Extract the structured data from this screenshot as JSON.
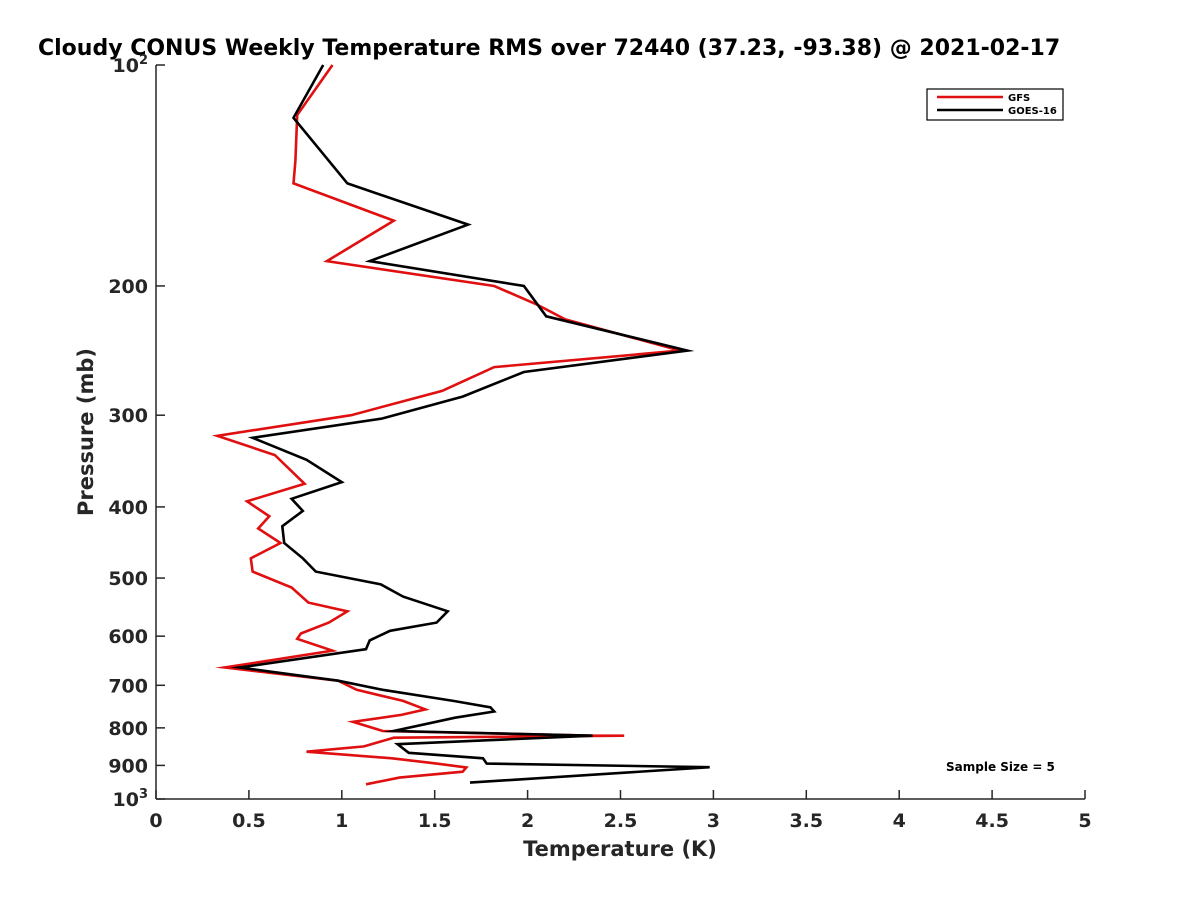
{
  "chart_data": {
    "type": "line",
    "title": "Cloudy CONUS Weekly Temperature RMS over 72440 (37.23, -93.38) @ 2021-02-17",
    "xlabel": "Temperature (K)",
    "ylabel": "Pressure (mb)",
    "xlim": [
      0,
      5
    ],
    "ylim": [
      100,
      1000
    ],
    "yscale": "log",
    "y_reversed": true,
    "grid": false,
    "legend_position": "top-right",
    "x_ticks": [
      0,
      0.5,
      1,
      1.5,
      2,
      2.5,
      3,
      3.5,
      4,
      4.5,
      5
    ],
    "x_tick_labels": [
      "0",
      "0.5",
      "1",
      "1.5",
      "2",
      "2.5",
      "3",
      "3.5",
      "4",
      "4.5",
      "5"
    ],
    "y_ticks": [
      100,
      200,
      300,
      400,
      500,
      600,
      700,
      800,
      900,
      1000
    ],
    "y_tick_labels": [
      {
        "base": "10",
        "exp": "2"
      },
      {
        "base": "200",
        "exp": ""
      },
      {
        "base": "300",
        "exp": ""
      },
      {
        "base": "400",
        "exp": ""
      },
      {
        "base": "500",
        "exp": ""
      },
      {
        "base": "600",
        "exp": ""
      },
      {
        "base": "700",
        "exp": ""
      },
      {
        "base": "800",
        "exp": ""
      },
      {
        "base": "900",
        "exp": ""
      },
      {
        "base": "10",
        "exp": "3"
      }
    ],
    "annotation": "Sample Size = 5",
    "series": [
      {
        "name": "GFS",
        "color": "#e01010",
        "points": [
          [
            0.95,
            100
          ],
          [
            0.76,
            117
          ],
          [
            0.75,
            135
          ],
          [
            0.74,
            145
          ],
          [
            1.28,
            163
          ],
          [
            0.92,
            185
          ],
          [
            1.82,
            200
          ],
          [
            2.05,
            212
          ],
          [
            2.2,
            222
          ],
          [
            2.82,
            245
          ],
          [
            1.82,
            258
          ],
          [
            1.54,
            278
          ],
          [
            1.05,
            300
          ],
          [
            0.33,
            320
          ],
          [
            0.64,
            340
          ],
          [
            0.8,
            372
          ],
          [
            0.49,
            393
          ],
          [
            0.61,
            412
          ],
          [
            0.55,
            428
          ],
          [
            0.67,
            448
          ],
          [
            0.51,
            470
          ],
          [
            0.52,
            490
          ],
          [
            0.73,
            515
          ],
          [
            0.82,
            540
          ],
          [
            1.03,
            555
          ],
          [
            0.93,
            575
          ],
          [
            0.78,
            595
          ],
          [
            0.76,
            605
          ],
          [
            0.95,
            628
          ],
          [
            0.37,
            662
          ],
          [
            0.98,
            690
          ],
          [
            1.08,
            710
          ],
          [
            1.33,
            735
          ],
          [
            1.45,
            755
          ],
          [
            1.32,
            768
          ],
          [
            1.06,
            785
          ],
          [
            1.22,
            808
          ],
          [
            2.36,
            820
          ],
          [
            2.52,
            820
          ],
          [
            1.28,
            825
          ],
          [
            1.12,
            848
          ],
          [
            0.81,
            862
          ],
          [
            1.27,
            880
          ],
          [
            1.51,
            895
          ],
          [
            1.67,
            906
          ],
          [
            1.65,
            918
          ],
          [
            1.31,
            935
          ],
          [
            1.13,
            955
          ]
        ]
      },
      {
        "name": "GOES-16",
        "color": "#000000",
        "points": [
          [
            0.9,
            100
          ],
          [
            0.74,
            118
          ],
          [
            1.03,
            145
          ],
          [
            1.68,
            165
          ],
          [
            1.15,
            185
          ],
          [
            1.98,
            200
          ],
          [
            2.1,
            220
          ],
          [
            2.86,
            245
          ],
          [
            1.98,
            262
          ],
          [
            1.65,
            283
          ],
          [
            1.22,
            303
          ],
          [
            0.52,
            322
          ],
          [
            0.81,
            345
          ],
          [
            1.0,
            370
          ],
          [
            0.73,
            390
          ],
          [
            0.79,
            405
          ],
          [
            0.68,
            425
          ],
          [
            0.69,
            448
          ],
          [
            0.79,
            470
          ],
          [
            0.86,
            490
          ],
          [
            1.21,
            510
          ],
          [
            1.33,
            530
          ],
          [
            1.57,
            555
          ],
          [
            1.51,
            575
          ],
          [
            1.26,
            590
          ],
          [
            1.15,
            608
          ],
          [
            1.13,
            625
          ],
          [
            0.45,
            662
          ],
          [
            0.98,
            690
          ],
          [
            1.22,
            710
          ],
          [
            1.6,
            735
          ],
          [
            1.8,
            750
          ],
          [
            1.82,
            760
          ],
          [
            1.61,
            775
          ],
          [
            1.28,
            808
          ],
          [
            2.35,
            820
          ],
          [
            1.3,
            842
          ],
          [
            1.36,
            865
          ],
          [
            1.76,
            880
          ],
          [
            1.78,
            895
          ],
          [
            2.98,
            905
          ],
          [
            1.69,
            950
          ]
        ]
      }
    ]
  }
}
